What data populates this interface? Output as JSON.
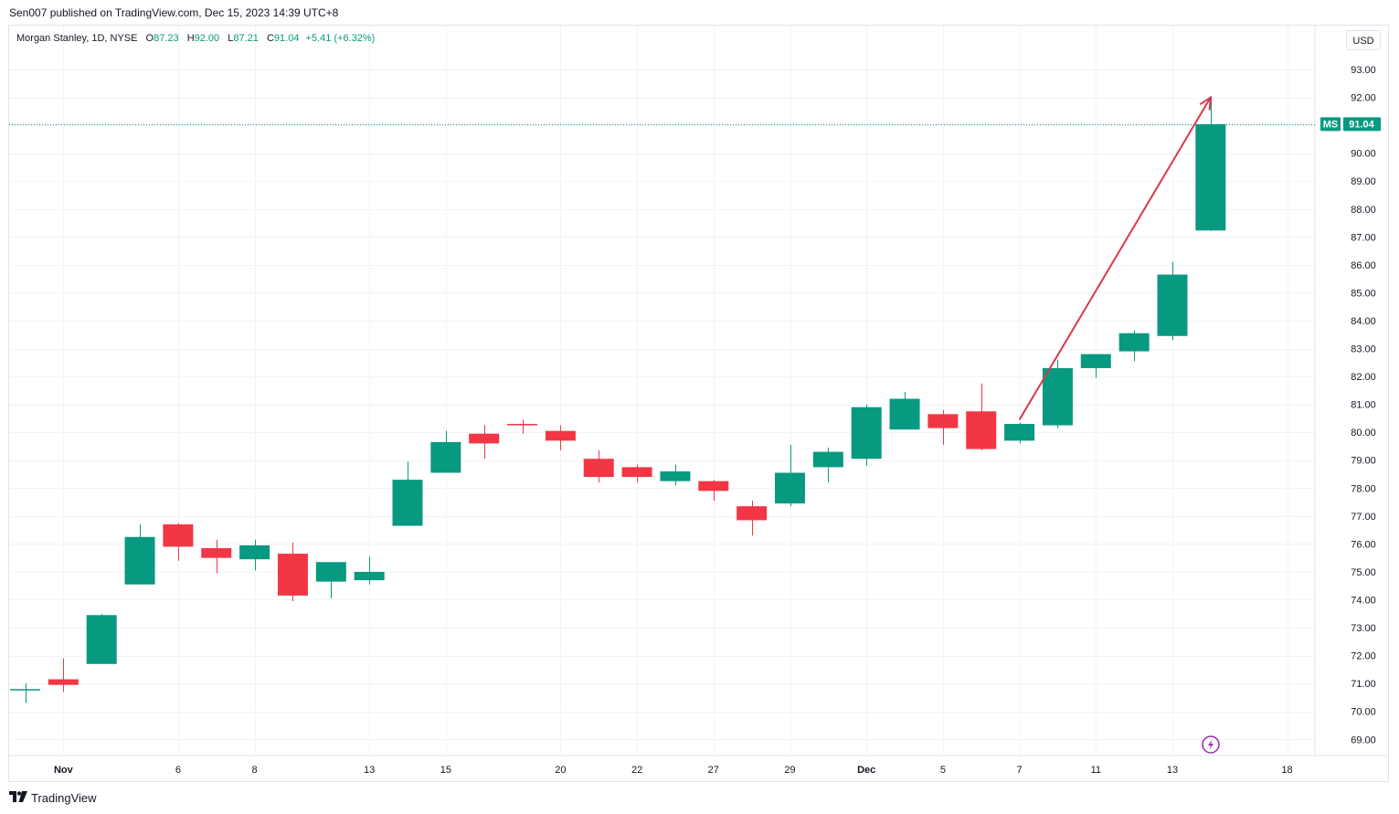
{
  "header": {
    "publisher": "Sen007 published on TradingView.com, Dec 15, 2023 14:39 UTC+8"
  },
  "legend": {
    "symbol": "Morgan Stanley, 1D, NYSE",
    "open_label": "O",
    "open": "87.23",
    "high_label": "H",
    "high": "92.00",
    "low_label": "L",
    "low": "87.21",
    "close_label": "C",
    "close": "91.04",
    "change": "+5.41 (+6.32%)"
  },
  "toolbar": {
    "currency": "USD"
  },
  "price_tag": {
    "symbol": "MS",
    "value": "91.04"
  },
  "footer": {
    "brand": "TradingView"
  },
  "colors": {
    "up": "#089981",
    "down": "#f23645",
    "arrow": "#d9394a",
    "grid": "#f0f3fa",
    "price_line": "#089981",
    "flash_icon": "#9c27b0"
  },
  "icons": {
    "flash": "lightning-icon",
    "logo": "tradingview-logo-icon"
  },
  "chart_data": {
    "type": "candlestick",
    "ylim": [
      68.2,
      93.8
    ],
    "y_ticks": [
      "93.00",
      "92.00",
      "90.00",
      "89.00",
      "88.00",
      "87.00",
      "86.00",
      "85.00",
      "84.00",
      "83.00",
      "82.00",
      "81.00",
      "80.00",
      "79.00",
      "78.00",
      "77.00",
      "76.00",
      "75.00",
      "74.00",
      "73.00",
      "72.00",
      "71.00",
      "70.00",
      "69.00"
    ],
    "x_ticks": [
      "Nov",
      "6",
      "8",
      "13",
      "15",
      "20",
      "22",
      "27",
      "29",
      "Dec",
      "5",
      "7",
      "11",
      "13",
      "18"
    ],
    "x_ticks_bold": [
      "Nov",
      "Dec"
    ],
    "last_price": 91.04,
    "dates": [
      "Oct 31",
      "Nov 1",
      "Nov 2",
      "Nov 3",
      "Nov 6",
      "Nov 7",
      "Nov 8",
      "Nov 9",
      "Nov 10",
      "Nov 13",
      "Nov 14",
      "Nov 15",
      "Nov 16",
      "Nov 17",
      "Nov 20",
      "Nov 21",
      "Nov 22",
      "Nov 24",
      "Nov 27",
      "Nov 28",
      "Nov 29",
      "Nov 30",
      "Dec 1",
      "Dec 4",
      "Dec 5",
      "Dec 6",
      "Dec 7",
      "Dec 8",
      "Dec 11",
      "Dec 12",
      "Dec 13",
      "Dec 14"
    ],
    "candles": [
      {
        "o": 70.75,
        "h": 71.0,
        "l": 70.3,
        "c": 70.8
      },
      {
        "o": 71.15,
        "h": 71.9,
        "l": 70.7,
        "c": 70.95
      },
      {
        "o": 71.7,
        "h": 73.5,
        "l": 71.7,
        "c": 73.45
      },
      {
        "o": 74.55,
        "h": 76.7,
        "l": 74.55,
        "c": 76.25
      },
      {
        "o": 76.7,
        "h": 76.75,
        "l": 75.4,
        "c": 75.9
      },
      {
        "o": 75.85,
        "h": 76.15,
        "l": 74.95,
        "c": 75.5
      },
      {
        "o": 75.45,
        "h": 76.15,
        "l": 75.05,
        "c": 75.95
      },
      {
        "o": 75.65,
        "h": 76.05,
        "l": 73.95,
        "c": 74.15
      },
      {
        "o": 74.65,
        "h": 75.35,
        "l": 74.05,
        "c": 75.35
      },
      {
        "o": 74.7,
        "h": 75.55,
        "l": 74.55,
        "c": 75.0
      },
      {
        "o": 76.65,
        "h": 78.95,
        "l": 76.65,
        "c": 78.3
      },
      {
        "o": 78.55,
        "h": 80.05,
        "l": 78.55,
        "c": 79.65
      },
      {
        "o": 79.95,
        "h": 80.25,
        "l": 79.05,
        "c": 79.6
      },
      {
        "o": 80.3,
        "h": 80.45,
        "l": 79.95,
        "c": 80.25
      },
      {
        "o": 80.05,
        "h": 80.25,
        "l": 79.35,
        "c": 79.7
      },
      {
        "o": 79.05,
        "h": 79.35,
        "l": 78.2,
        "c": 78.4
      },
      {
        "o": 78.75,
        "h": 78.85,
        "l": 78.2,
        "c": 78.4
      },
      {
        "o": 78.25,
        "h": 78.85,
        "l": 78.1,
        "c": 78.6
      },
      {
        "o": 78.25,
        "h": 78.3,
        "l": 77.55,
        "c": 77.9
      },
      {
        "o": 77.35,
        "h": 77.55,
        "l": 76.3,
        "c": 76.85
      },
      {
        "o": 77.45,
        "h": 79.55,
        "l": 77.35,
        "c": 78.55
      },
      {
        "o": 78.75,
        "h": 79.45,
        "l": 78.2,
        "c": 79.3
      },
      {
        "o": 79.05,
        "h": 81.0,
        "l": 78.8,
        "c": 80.9
      },
      {
        "o": 80.1,
        "h": 81.45,
        "l": 80.1,
        "c": 81.2
      },
      {
        "o": 80.65,
        "h": 80.8,
        "l": 79.55,
        "c": 80.15
      },
      {
        "o": 80.75,
        "h": 81.75,
        "l": 79.35,
        "c": 79.4
      },
      {
        "o": 79.7,
        "h": 80.35,
        "l": 79.6,
        "c": 80.3
      },
      {
        "o": 80.25,
        "h": 82.6,
        "l": 80.15,
        "c": 82.3
      },
      {
        "o": 82.3,
        "h": 82.8,
        "l": 81.95,
        "c": 82.8
      },
      {
        "o": 82.9,
        "h": 83.65,
        "l": 82.55,
        "c": 83.55
      },
      {
        "o": 83.45,
        "h": 86.1,
        "l": 83.3,
        "c": 85.65
      },
      {
        "o": 87.23,
        "h": 92.0,
        "l": 87.21,
        "c": 91.04
      }
    ],
    "annotation": {
      "type": "arrow",
      "from": {
        "date": "Dec 7",
        "price": 80.45
      },
      "to": {
        "date": "Dec 14",
        "price": 92.0
      }
    },
    "grid": true
  }
}
